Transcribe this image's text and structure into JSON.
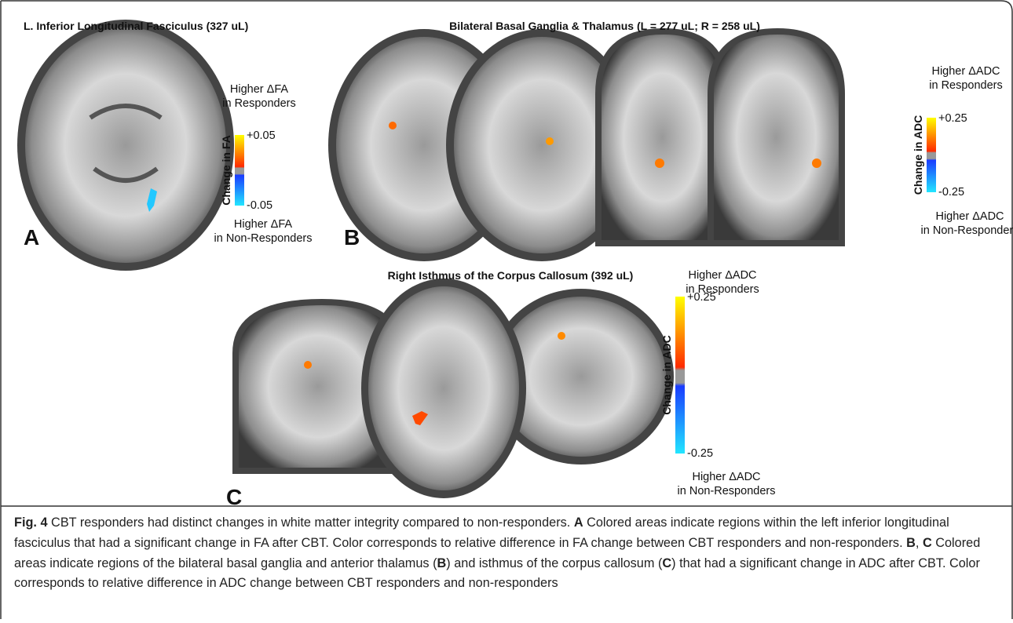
{
  "panels": [
    {
      "title": "L. Inferior Longitudinal Fasciculus (327 uL)",
      "letter": "A",
      "colorbar": {
        "top_line1": "Higher ΔFA",
        "top_line2": "in Responders",
        "max": "+0.05",
        "axis_label": "Change in FA",
        "min": "-0.05",
        "bottom_line1": "Higher ΔFA",
        "bottom_line2": "in Non-Responders"
      }
    },
    {
      "title": "Bilateral Basal Ganglia & Thalamus (L = 277 uL; R = 258 uL)",
      "letter": "B",
      "colorbar": {
        "top_line1": "Higher ΔADC",
        "top_line2": "in Responders",
        "max": "+0.25",
        "axis_label": "Change in ADC",
        "min": "-0.25",
        "bottom_line1": "Higher ΔADC",
        "bottom_line2": "in Non-Responders"
      }
    },
    {
      "title": "Right Isthmus of the Corpus Callosum (392 uL)",
      "letter": "C",
      "colorbar": {
        "top_line1": "Higher ΔADC",
        "top_line2": "in Responders",
        "max": "+0.25",
        "axis_label": "Change in ADC",
        "min": "-0.25",
        "bottom_line1": "Higher ΔADC",
        "bottom_line2": "in Non-Responders"
      }
    }
  ],
  "caption": {
    "segments": [
      {
        "text": "Fig. 4",
        "bold": true
      },
      {
        "text": " CBT responders had distinct changes in white matter integrity compared to non-responders. ",
        "bold": false
      },
      {
        "text": "A",
        "bold": true
      },
      {
        "text": " Colored areas indicate regions within the left inferior longitudinal fasciculus that had a significant change in FA after CBT. Color corresponds to relative difference in FA change between CBT responders and non-responders. ",
        "bold": false
      },
      {
        "text": "B",
        "bold": true
      },
      {
        "text": ", ",
        "bold": false
      },
      {
        "text": "C",
        "bold": true
      },
      {
        "text": " Colored areas indicate regions of the bilateral basal ganglia and anterior thalamus (",
        "bold": false
      },
      {
        "text": "B",
        "bold": true
      },
      {
        "text": ") and isthmus of the corpus callosum (",
        "bold": false
      },
      {
        "text": "C",
        "bold": true
      },
      {
        "text": ") that had a significant change in ADC after CBT. Color corresponds to relative difference in ADC change between CBT responders and non-responders",
        "bold": false
      }
    ]
  }
}
